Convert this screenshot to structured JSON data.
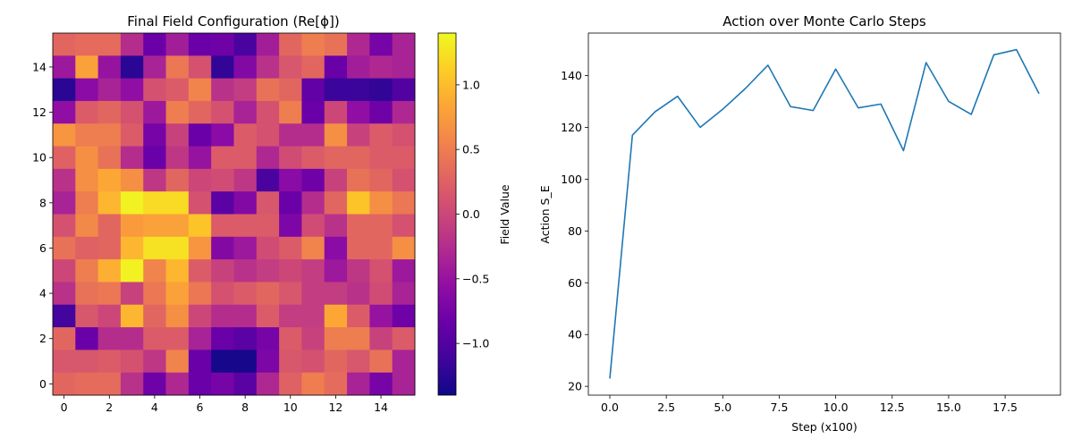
{
  "chart_data": [
    {
      "type": "heatmap",
      "title": "Final Field Configuration (Re[ϕ])",
      "xlabel": "",
      "ylabel": "",
      "colorbar_label": "Field Value",
      "colormap": "plasma",
      "vmin": -1.4,
      "vmax": 1.4,
      "xlim": [
        -0.5,
        15.5
      ],
      "ylim": [
        -0.5,
        15.5
      ],
      "x_ticks": [
        0,
        2,
        4,
        6,
        8,
        10,
        12,
        14
      ],
      "y_ticks": [
        0,
        2,
        4,
        6,
        8,
        10,
        12,
        14
      ],
      "colorbar_ticks": [
        -1.0,
        -0.5,
        0.0,
        0.5,
        1.0
      ],
      "colorbar_tick_labels": [
        "−1.0",
        "−0.5",
        "0.0",
        "0.5",
        "1.0"
      ],
      "grid_rows_top_to_bottom": [
        [
          0.3,
          0.35,
          0.35,
          -0.25,
          -0.85,
          -0.4,
          -0.85,
          -0.8,
          -1.05,
          -0.4,
          0.3,
          0.5,
          0.4,
          -0.3,
          -0.75,
          -0.35
        ],
        [
          -0.45,
          0.8,
          -0.5,
          -1.25,
          -0.35,
          0.45,
          0.1,
          -1.2,
          -0.65,
          -0.2,
          0.15,
          0.3,
          -0.85,
          -0.4,
          -0.3,
          -0.35
        ],
        [
          -1.25,
          -0.6,
          -0.35,
          -0.55,
          0.1,
          0.2,
          0.55,
          -0.2,
          -0.1,
          0.4,
          0.3,
          -0.9,
          -1.15,
          -1.15,
          -1.2,
          -1.0
        ],
        [
          -0.55,
          0.2,
          0.3,
          0.1,
          -0.45,
          0.5,
          0.3,
          0.1,
          -0.35,
          0.1,
          0.5,
          -0.85,
          0.0,
          -0.55,
          -0.8,
          -0.3
        ],
        [
          0.7,
          0.5,
          0.5,
          0.2,
          -0.75,
          -0.05,
          -0.85,
          -0.6,
          0.2,
          0.1,
          -0.25,
          -0.25,
          0.65,
          -0.05,
          0.2,
          0.1
        ],
        [
          0.25,
          0.65,
          0.4,
          -0.25,
          -0.85,
          -0.15,
          -0.5,
          0.2,
          0.2,
          -0.3,
          0.05,
          0.2,
          0.3,
          0.3,
          0.2,
          0.2
        ],
        [
          -0.2,
          0.65,
          0.85,
          0.65,
          -0.15,
          0.3,
          0.0,
          0.05,
          -0.15,
          -1.05,
          -0.6,
          -0.8,
          -0.05,
          0.4,
          0.3,
          0.1
        ],
        [
          -0.35,
          0.5,
          0.95,
          1.35,
          1.2,
          1.2,
          0.1,
          -0.95,
          -0.65,
          0.15,
          -0.85,
          -0.25,
          0.3,
          1.05,
          0.65,
          0.45
        ],
        [
          0.1,
          0.6,
          0.3,
          0.75,
          0.8,
          0.8,
          1.05,
          0.2,
          0.2,
          0.2,
          -0.7,
          0.05,
          -0.2,
          0.3,
          0.3,
          0.1
        ],
        [
          0.4,
          0.25,
          0.3,
          0.95,
          1.25,
          1.25,
          0.7,
          -0.65,
          -0.45,
          0.05,
          0.2,
          0.55,
          -0.6,
          0.3,
          0.3,
          0.65
        ],
        [
          0.0,
          0.5,
          0.9,
          1.35,
          0.55,
          0.95,
          0.2,
          -0.05,
          -0.2,
          -0.1,
          0.0,
          -0.1,
          -0.45,
          -0.15,
          0.1,
          -0.45
        ],
        [
          -0.2,
          0.4,
          0.45,
          -0.05,
          0.45,
          0.8,
          0.45,
          0.1,
          0.2,
          0.3,
          0.15,
          -0.1,
          -0.1,
          -0.2,
          0.05,
          -0.35
        ],
        [
          -1.1,
          0.15,
          0.0,
          0.95,
          0.3,
          0.65,
          0.0,
          -0.25,
          -0.25,
          0.2,
          -0.1,
          -0.1,
          0.85,
          0.2,
          -0.5,
          -0.8
        ],
        [
          0.3,
          -0.85,
          -0.25,
          -0.25,
          0.2,
          0.2,
          -0.35,
          -0.85,
          -0.95,
          -0.75,
          0.2,
          -0.05,
          0.5,
          0.5,
          -0.05,
          0.2
        ],
        [
          0.15,
          0.15,
          0.2,
          0.1,
          -0.15,
          0.55,
          -0.85,
          -1.35,
          -1.35,
          -0.7,
          0.15,
          0.1,
          0.3,
          0.15,
          0.4,
          -0.35
        ],
        [
          0.3,
          0.35,
          0.35,
          -0.2,
          -0.8,
          -0.3,
          -0.85,
          -0.75,
          -0.95,
          -0.3,
          0.25,
          0.5,
          0.35,
          -0.35,
          -0.75,
          -0.35
        ]
      ]
    },
    {
      "type": "line",
      "title": "Action over Monte Carlo Steps",
      "xlabel": "Step (x100)",
      "ylabel": "Action S_E",
      "xlim": [
        -0.95,
        19.95
      ],
      "ylim": [
        16.6,
        156.4
      ],
      "x_ticks": [
        0.0,
        2.5,
        5.0,
        7.5,
        10.0,
        12.5,
        15.0,
        17.5
      ],
      "x_tick_labels": [
        "0.0",
        "2.5",
        "5.0",
        "7.5",
        "10.0",
        "12.5",
        "15.0",
        "17.5"
      ],
      "y_ticks": [
        20,
        40,
        60,
        80,
        100,
        120,
        140
      ],
      "grid": false,
      "line_color": "#1f77b4",
      "series": [
        {
          "x": [
            0,
            1,
            2,
            3,
            4,
            5,
            6,
            7,
            8,
            9,
            10,
            11,
            12,
            13,
            14,
            15,
            16,
            17,
            18,
            19
          ],
          "values": [
            23,
            117,
            126,
            132,
            120,
            127,
            135,
            144,
            128,
            126.5,
            142.5,
            127.5,
            129,
            111,
            145,
            130,
            125,
            148,
            150,
            133
          ]
        }
      ]
    }
  ]
}
